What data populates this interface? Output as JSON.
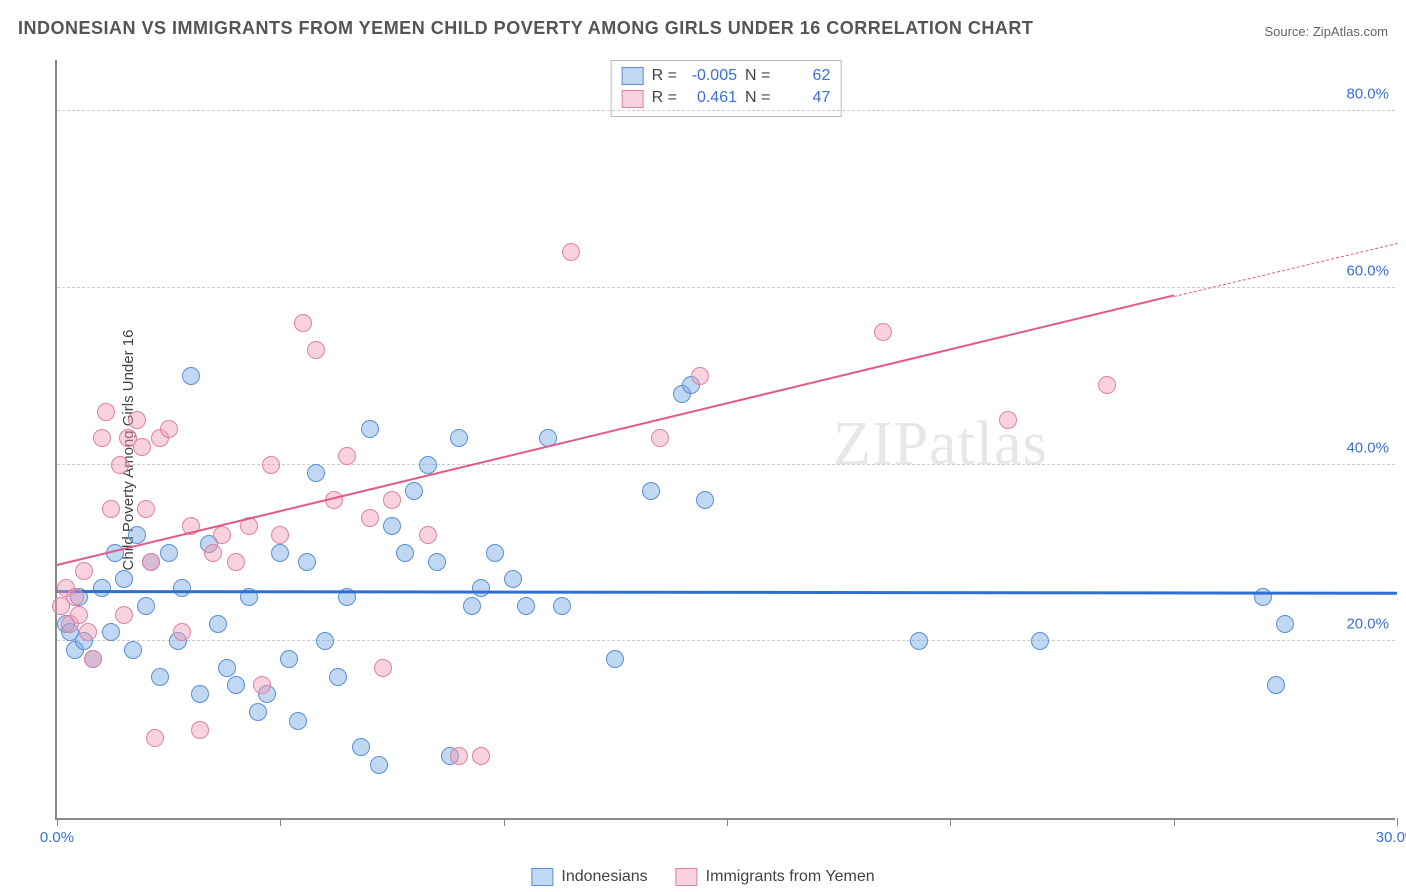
{
  "title": "INDONESIAN VS IMMIGRANTS FROM YEMEN CHILD POVERTY AMONG GIRLS UNDER 16 CORRELATION CHART",
  "source": "Source: ZipAtlas.com",
  "y_axis_label": "Child Poverty Among Girls Under 16",
  "watermark": "ZIPatlas",
  "chart": {
    "type": "scatter",
    "xlim": [
      0,
      30
    ],
    "ylim": [
      0,
      86
    ],
    "x_ticks": [
      0,
      5,
      10,
      15,
      20,
      25,
      30
    ],
    "x_tick_labels": {
      "0": "0.0%",
      "30": "30.0%"
    },
    "x_tick_label_color": "#3b6fd6",
    "y_gridlines": [
      20,
      40,
      60,
      80
    ],
    "y_tick_labels": {
      "20": "20.0%",
      "40": "40.0%",
      "60": "60.0%",
      "80": "80.0%"
    },
    "y_tick_label_color": "#3b6fd6",
    "grid_color": "#cccccc",
    "axis_color": "#888888",
    "background_color": "#ffffff",
    "marker_radius": 9,
    "marker_stroke_width": 1.5,
    "series": [
      {
        "name": "Indonesians",
        "fill_color": "rgba(118,168,228,0.45)",
        "stroke_color": "#5a8fd6",
        "trend_color": "#2f6fd0",
        "trend_width": 3,
        "trend": {
          "x1": 0,
          "y1": 25.5,
          "x2": 30,
          "y2": 25.3
        },
        "R": "-0.005",
        "N": "62",
        "points": [
          [
            0.2,
            22
          ],
          [
            0.3,
            21
          ],
          [
            0.4,
            19
          ],
          [
            0.5,
            25
          ],
          [
            0.6,
            20
          ],
          [
            0.8,
            18
          ],
          [
            1.0,
            26
          ],
          [
            1.2,
            21
          ],
          [
            1.3,
            30
          ],
          [
            1.5,
            27
          ],
          [
            1.7,
            19
          ],
          [
            1.8,
            32
          ],
          [
            2.0,
            24
          ],
          [
            2.1,
            29
          ],
          [
            2.3,
            16
          ],
          [
            2.5,
            30
          ],
          [
            2.7,
            20
          ],
          [
            2.8,
            26
          ],
          [
            3.0,
            50
          ],
          [
            3.2,
            14
          ],
          [
            3.4,
            31
          ],
          [
            3.6,
            22
          ],
          [
            3.8,
            17
          ],
          [
            4.0,
            15
          ],
          [
            4.3,
            25
          ],
          [
            4.5,
            12
          ],
          [
            4.7,
            14
          ],
          [
            5.0,
            30
          ],
          [
            5.2,
            18
          ],
          [
            5.4,
            11
          ],
          [
            5.6,
            29
          ],
          [
            5.8,
            39
          ],
          [
            6.0,
            20
          ],
          [
            6.3,
            16
          ],
          [
            6.5,
            25
          ],
          [
            6.8,
            8
          ],
          [
            7.0,
            44
          ],
          [
            7.2,
            6
          ],
          [
            7.5,
            33
          ],
          [
            7.8,
            30
          ],
          [
            8.0,
            37
          ],
          [
            8.3,
            40
          ],
          [
            8.5,
            29
          ],
          [
            8.8,
            7
          ],
          [
            9.0,
            43
          ],
          [
            9.3,
            24
          ],
          [
            9.5,
            26
          ],
          [
            9.8,
            30
          ],
          [
            10.2,
            27
          ],
          [
            10.5,
            24
          ],
          [
            11.0,
            43
          ],
          [
            11.3,
            24
          ],
          [
            12.5,
            18
          ],
          [
            13.3,
            37
          ],
          [
            14.0,
            48
          ],
          [
            14.2,
            49
          ],
          [
            14.5,
            36
          ],
          [
            19.3,
            20
          ],
          [
            22.0,
            20
          ],
          [
            27.3,
            15
          ],
          [
            27.5,
            22
          ],
          [
            27.0,
            25
          ]
        ]
      },
      {
        "name": "Immigrants from Yemen",
        "fill_color": "rgba(240,155,180,0.45)",
        "stroke_color": "#e081a3",
        "trend_color": "#e05a8a",
        "trend_width": 2.5,
        "trend": {
          "x1": 0,
          "y1": 28.5,
          "x2": 25,
          "y2": 59
        },
        "trend_dash": {
          "x1": 25,
          "y1": 59,
          "x2": 30,
          "y2": 65
        },
        "R": "0.461",
        "N": "47",
        "points": [
          [
            0.1,
            24
          ],
          [
            0.2,
            26
          ],
          [
            0.3,
            22
          ],
          [
            0.4,
            25
          ],
          [
            0.5,
            23
          ],
          [
            0.6,
            28
          ],
          [
            0.7,
            21
          ],
          [
            0.8,
            18
          ],
          [
            1.0,
            43
          ],
          [
            1.1,
            46
          ],
          [
            1.2,
            35
          ],
          [
            1.4,
            40
          ],
          [
            1.5,
            23
          ],
          [
            1.6,
            43
          ],
          [
            1.8,
            45
          ],
          [
            1.9,
            42
          ],
          [
            2.0,
            35
          ],
          [
            2.1,
            29
          ],
          [
            2.2,
            9
          ],
          [
            2.3,
            43
          ],
          [
            2.5,
            44
          ],
          [
            2.8,
            21
          ],
          [
            3.0,
            33
          ],
          [
            3.2,
            10
          ],
          [
            3.5,
            30
          ],
          [
            3.7,
            32
          ],
          [
            4.0,
            29
          ],
          [
            4.3,
            33
          ],
          [
            4.6,
            15
          ],
          [
            4.8,
            40
          ],
          [
            5.0,
            32
          ],
          [
            5.5,
            56
          ],
          [
            5.8,
            53
          ],
          [
            6.2,
            36
          ],
          [
            6.5,
            41
          ],
          [
            7.0,
            34
          ],
          [
            7.3,
            17
          ],
          [
            7.5,
            36
          ],
          [
            8.3,
            32
          ],
          [
            9.0,
            7
          ],
          [
            11.5,
            64
          ],
          [
            13.5,
            43
          ],
          [
            14.4,
            50
          ],
          [
            18.5,
            55
          ],
          [
            21.3,
            45
          ],
          [
            23.5,
            49
          ],
          [
            9.5,
            7
          ]
        ]
      }
    ]
  },
  "stats_box": {
    "rows": [
      {
        "swatch_fill": "rgba(118,168,228,0.45)",
        "swatch_border": "#5a8fd6",
        "R_label": "R =",
        "R": "-0.005",
        "N_label": "N =",
        "N": "62"
      },
      {
        "swatch_fill": "rgba(240,155,180,0.45)",
        "swatch_border": "#e081a3",
        "R_label": "R =",
        "R": " 0.461",
        "N_label": "N =",
        "N": "47"
      }
    ]
  },
  "bottom_legend": [
    {
      "swatch_fill": "rgba(118,168,228,0.45)",
      "swatch_border": "#5a8fd6",
      "label": "Indonesians"
    },
    {
      "swatch_fill": "rgba(240,155,180,0.45)",
      "swatch_border": "#e081a3",
      "label": "Immigrants from Yemen"
    }
  ]
}
